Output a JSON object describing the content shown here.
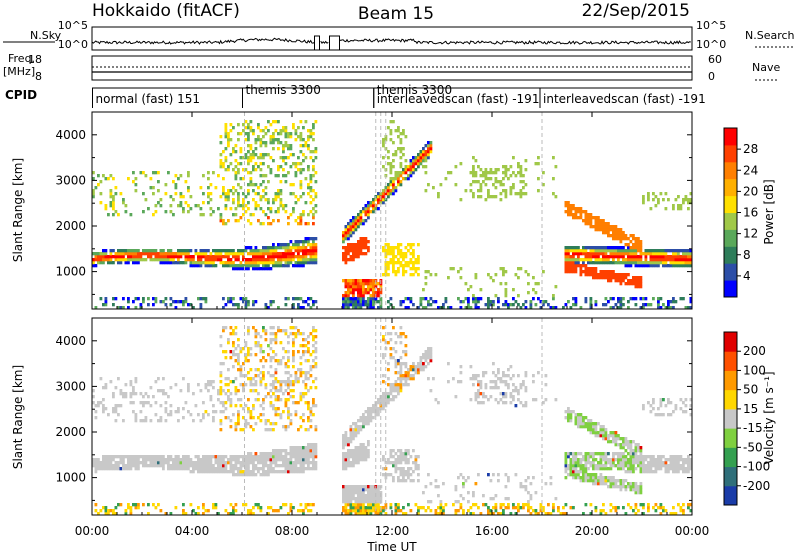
{
  "header": {
    "site": "Hokkaido (fitACF)",
    "beam": "Beam 15",
    "date": "22/Sep/2015"
  },
  "noise": {
    "left_label": "N.Sky",
    "left_ticks": [
      "10^5",
      "10^0"
    ],
    "right_ticks": [
      "10^5",
      "10^0"
    ],
    "right_label": "N.Search"
  },
  "freq": {
    "left_label_1": "Freq.",
    "left_label_2": "[MHz]",
    "left_ticks": [
      "18",
      "8"
    ],
    "right_ticks": [
      "60",
      "0"
    ],
    "right_label": "Nave"
  },
  "cpid": {
    "label": "CPID",
    "segments": [
      {
        "text": "normal (fast) 151",
        "time": 0.1
      },
      {
        "text": "themis 3300",
        "time": 6.1
      },
      {
        "text": "themis 3300",
        "time": 11.35
      },
      {
        "text": "interleavedscan (fast) -191",
        "time": 11.35
      },
      {
        "text": "interleavedscan (fast) -191",
        "time": 18.0
      }
    ]
  },
  "xaxis": {
    "label": "Time UT",
    "ticks": [
      "00:00",
      "04:00",
      "08:00",
      "12:00",
      "16:00",
      "20:00",
      "00:00"
    ]
  },
  "power_panel": {
    "ylabel": "Slant Range [km]",
    "yticks": [
      "1000",
      "2000",
      "3000",
      "4000"
    ],
    "cbar_label": "Power [dB]",
    "cbar_ticks": [
      "28",
      "24",
      "20",
      "16",
      "12",
      "8",
      "4"
    ],
    "cbar_colors": [
      "#0000ff",
      "#2c4ea7",
      "#2e7d5a",
      "#5aa85a",
      "#a0c848",
      "#ffe000",
      "#ffb000",
      "#ff7f00",
      "#ff4000",
      "#ff0000"
    ]
  },
  "velocity_panel": {
    "ylabel": "Slant Range [km]",
    "yticks": [
      "1000",
      "2000",
      "3000",
      "4000"
    ],
    "cbar_label": "Velocity [m s⁻¹]",
    "cbar_ticks": [
      "200",
      "100",
      "50",
      "15",
      "-15",
      "-50",
      "-100",
      "-200"
    ],
    "cbar_colors": [
      "#1a3ca8",
      "#2f6f7a",
      "#34a050",
      "#7fd040",
      "#c8c8c8",
      "#ffd700",
      "#ff9a00",
      "#ff5000",
      "#e00000"
    ]
  },
  "chart_data": [
    {
      "type": "line",
      "name": "noise",
      "x_range_hours": [
        0,
        24
      ],
      "ylim_log": [
        0,
        5
      ],
      "gap_hours": [
        [
          8.9,
          9.1
        ],
        [
          9.5,
          9.9
        ]
      ]
    },
    {
      "type": "heatmap",
      "quantity": "Power",
      "x_range_hours": [
        0,
        24
      ],
      "y_range_km": [
        180,
        4500
      ],
      "zlim_db": [
        0,
        32
      ],
      "features": [
        {
          "desc": "main band",
          "t_start": 0,
          "t_end": 9.0,
          "range_start_km": 1200,
          "range_end_km": 1500
        },
        {
          "desc": "rising echo",
          "t_start": 9.9,
          "t_end": 13,
          "range_start_km": 1700,
          "range_end_km": 3600
        },
        {
          "desc": "evening band",
          "t_start": 18.8,
          "t_end": 24,
          "range_start_km": 1400,
          "range_end_km": 1200
        }
      ]
    },
    {
      "type": "heatmap",
      "quantity": "Velocity",
      "x_range_hours": [
        0,
        24
      ],
      "y_range_km": [
        180,
        4500
      ],
      "zlim_ms": [
        -200,
        200
      ]
    }
  ]
}
